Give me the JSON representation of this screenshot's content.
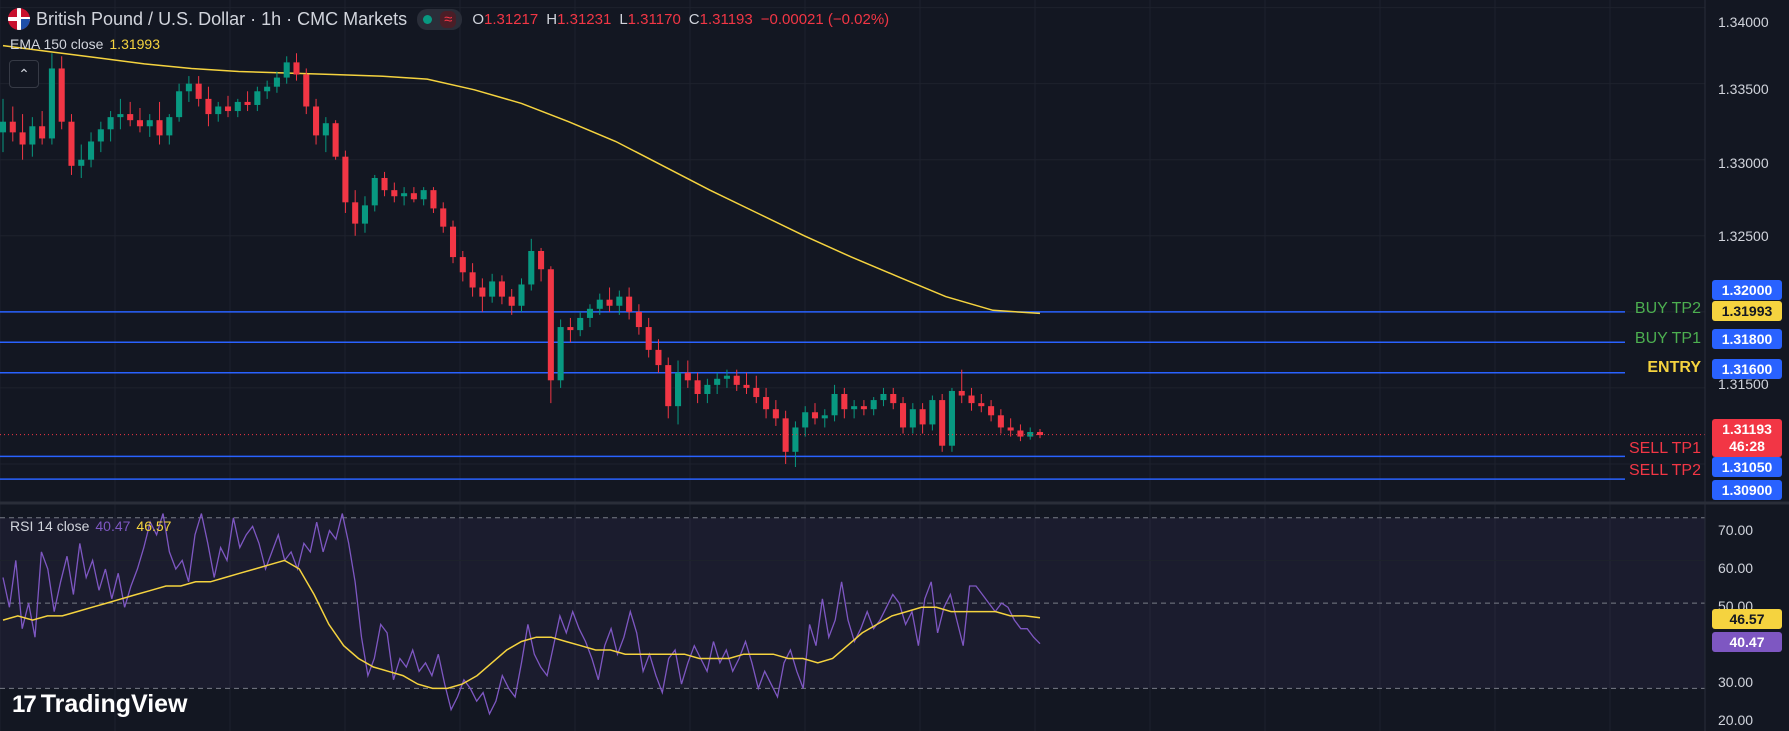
{
  "header": {
    "title": "British Pound / U.S. Dollar · 1h · CMC Markets",
    "o_label": "O",
    "o": "1.31217",
    "h_label": "H",
    "h": "1.31231",
    "l_label": "L",
    "l": "1.31170",
    "c_label": "C",
    "c": "1.31193",
    "change": "−0.00021 (−0.02%)"
  },
  "ema_legend": {
    "label": "EMA 150 close",
    "value": "1.31993"
  },
  "rsi_legend": {
    "label": "RSI 14 close",
    "rsi": "40.47",
    "ma": "46.57"
  },
  "price_axis": [
    "1.34000",
    "1.33500",
    "1.33000",
    "1.32500",
    "1.31500"
  ],
  "rsi_axis": [
    "70.00",
    "60.00",
    "50.00",
    "30.00",
    "20.00"
  ],
  "levels": [
    {
      "name": "BUY TP2",
      "price": "1.32000",
      "color": "#2962ff",
      "label_color": "#4caf50"
    },
    {
      "name": "BUY TP1",
      "price": "1.31800",
      "color": "#2962ff",
      "label_color": "#4caf50"
    },
    {
      "name": "ENTRY",
      "price": "1.31600",
      "color": "#2962ff",
      "label_color": "#f5d33f"
    },
    {
      "name": "SELL TP1",
      "price": "1.31050",
      "color": "#2962ff",
      "label_color": "#f23645"
    },
    {
      "name": "SELL TP2",
      "price": "1.30900",
      "color": "#2962ff",
      "label_color": "#f23645"
    }
  ],
  "price_tags": {
    "ema": "1.31993",
    "last": "1.31193",
    "countdown": "46:28",
    "rsi_ma": "46.57",
    "rsi": "40.47"
  },
  "logo": {
    "text": "TradingView"
  },
  "colors": {
    "up": "#089981",
    "down": "#f23645",
    "ema": "#f5d33f",
    "rsi": "#7e57c2",
    "rsi_ma": "#f5d33f",
    "level": "#2962ff",
    "bg": "#131722"
  },
  "chart_data": {
    "type": "candlestick",
    "symbol": "GBPUSD",
    "timeframe": "1h",
    "ylim": [
      1.3075,
      1.3405
    ],
    "ohlc": [
      [
        1.3318,
        1.334,
        1.3305,
        1.3325
      ],
      [
        1.3325,
        1.3335,
        1.3312,
        1.3318
      ],
      [
        1.3318,
        1.333,
        1.33,
        1.331
      ],
      [
        1.331,
        1.3328,
        1.3302,
        1.3322
      ],
      [
        1.3322,
        1.3332,
        1.331,
        1.3314
      ],
      [
        1.3314,
        1.337,
        1.331,
        1.336
      ],
      [
        1.336,
        1.3368,
        1.332,
        1.3325
      ],
      [
        1.3325,
        1.333,
        1.329,
        1.3296
      ],
      [
        1.3296,
        1.331,
        1.3288,
        1.33
      ],
      [
        1.33,
        1.3318,
        1.3295,
        1.3312
      ],
      [
        1.3312,
        1.3325,
        1.3305,
        1.332
      ],
      [
        1.332,
        1.3332,
        1.3312,
        1.3328
      ],
      [
        1.3328,
        1.334,
        1.332,
        1.333
      ],
      [
        1.333,
        1.3338,
        1.3322,
        1.3326
      ],
      [
        1.3326,
        1.3334,
        1.3318,
        1.3322
      ],
      [
        1.3322,
        1.333,
        1.3315,
        1.3326
      ],
      [
        1.3326,
        1.3338,
        1.331,
        1.3316
      ],
      [
        1.3316,
        1.333,
        1.331,
        1.3328
      ],
      [
        1.3328,
        1.335,
        1.3325,
        1.3345
      ],
      [
        1.3345,
        1.3355,
        1.3338,
        1.335
      ],
      [
        1.335,
        1.3355,
        1.3335,
        1.334
      ],
      [
        1.334,
        1.3348,
        1.3322,
        1.333
      ],
      [
        1.333,
        1.3338,
        1.3325,
        1.3335
      ],
      [
        1.3335,
        1.3342,
        1.3328,
        1.3332
      ],
      [
        1.3332,
        1.334,
        1.3328,
        1.3338
      ],
      [
        1.3338,
        1.3345,
        1.3332,
        1.3336
      ],
      [
        1.3336,
        1.3348,
        1.3332,
        1.3345
      ],
      [
        1.3345,
        1.3352,
        1.334,
        1.3348
      ],
      [
        1.3348,
        1.3358,
        1.3344,
        1.3354
      ],
      [
        1.3354,
        1.3368,
        1.335,
        1.3364
      ],
      [
        1.3364,
        1.337,
        1.3352,
        1.3356
      ],
      [
        1.3356,
        1.336,
        1.333,
        1.3335
      ],
      [
        1.3335,
        1.334,
        1.331,
        1.3316
      ],
      [
        1.3316,
        1.3328,
        1.3305,
        1.3324
      ],
      [
        1.3324,
        1.3326,
        1.33,
        1.3302
      ],
      [
        1.3302,
        1.3306,
        1.3265,
        1.3272
      ],
      [
        1.3272,
        1.328,
        1.325,
        1.3258
      ],
      [
        1.3258,
        1.3276,
        1.3252,
        1.327
      ],
      [
        1.327,
        1.329,
        1.3266,
        1.3288
      ],
      [
        1.3288,
        1.3292,
        1.3276,
        1.328
      ],
      [
        1.328,
        1.3285,
        1.3272,
        1.3276
      ],
      [
        1.3276,
        1.3282,
        1.327,
        1.3278
      ],
      [
        1.3278,
        1.3282,
        1.3272,
        1.3274
      ],
      [
        1.3274,
        1.3282,
        1.327,
        1.328
      ],
      [
        1.328,
        1.3282,
        1.3265,
        1.3268
      ],
      [
        1.3268,
        1.3272,
        1.3252,
        1.3256
      ],
      [
        1.3256,
        1.326,
        1.3232,
        1.3236
      ],
      [
        1.3236,
        1.324,
        1.322,
        1.3226
      ],
      [
        1.3226,
        1.3232,
        1.321,
        1.3216
      ],
      [
        1.3216,
        1.3222,
        1.32,
        1.321
      ],
      [
        1.321,
        1.3225,
        1.3206,
        1.322
      ],
      [
        1.322,
        1.3224,
        1.3205,
        1.321
      ],
      [
        1.321,
        1.3215,
        1.3198,
        1.3204
      ],
      [
        1.3204,
        1.3222,
        1.32,
        1.3218
      ],
      [
        1.3218,
        1.3248,
        1.3214,
        1.324
      ],
      [
        1.324,
        1.3242,
        1.322,
        1.3228
      ],
      [
        1.3228,
        1.323,
        1.314,
        1.3155
      ],
      [
        1.3155,
        1.3195,
        1.315,
        1.319
      ],
      [
        1.319,
        1.3196,
        1.318,
        1.3188
      ],
      [
        1.3188,
        1.32,
        1.3184,
        1.3196
      ],
      [
        1.3196,
        1.3205,
        1.319,
        1.3202
      ],
      [
        1.3202,
        1.3212,
        1.3198,
        1.3208
      ],
      [
        1.3208,
        1.3216,
        1.32,
        1.3204
      ],
      [
        1.3204,
        1.3214,
        1.3198,
        1.321
      ],
      [
        1.321,
        1.3216,
        1.3195,
        1.32
      ],
      [
        1.32,
        1.3205,
        1.3185,
        1.319
      ],
      [
        1.319,
        1.3196,
        1.317,
        1.3175
      ],
      [
        1.3175,
        1.3182,
        1.316,
        1.3165
      ],
      [
        1.3165,
        1.317,
        1.313,
        1.3138
      ],
      [
        1.3138,
        1.3168,
        1.3126,
        1.316
      ],
      [
        1.316,
        1.3168,
        1.315,
        1.3155
      ],
      [
        1.3155,
        1.316,
        1.314,
        1.3146
      ],
      [
        1.3146,
        1.3156,
        1.314,
        1.3152
      ],
      [
        1.3152,
        1.316,
        1.3146,
        1.3156
      ],
      [
        1.3156,
        1.3162,
        1.315,
        1.3158
      ],
      [
        1.3158,
        1.3162,
        1.3148,
        1.3152
      ],
      [
        1.3152,
        1.316,
        1.3146,
        1.315
      ],
      [
        1.315,
        1.3158,
        1.314,
        1.3144
      ],
      [
        1.3144,
        1.315,
        1.313,
        1.3136
      ],
      [
        1.3136,
        1.3142,
        1.3125,
        1.313
      ],
      [
        1.313,
        1.3135,
        1.31,
        1.3108
      ],
      [
        1.3108,
        1.3128,
        1.3098,
        1.3124
      ],
      [
        1.3124,
        1.3138,
        1.3118,
        1.3134
      ],
      [
        1.3134,
        1.314,
        1.3126,
        1.313
      ],
      [
        1.313,
        1.3136,
        1.3124,
        1.3132
      ],
      [
        1.3132,
        1.3152,
        1.3128,
        1.3146
      ],
      [
        1.3146,
        1.315,
        1.313,
        1.3136
      ],
      [
        1.3136,
        1.3142,
        1.313,
        1.3138
      ],
      [
        1.3138,
        1.3142,
        1.3132,
        1.3136
      ],
      [
        1.3136,
        1.3144,
        1.3132,
        1.3142
      ],
      [
        1.3142,
        1.315,
        1.3138,
        1.3146
      ],
      [
        1.3146,
        1.315,
        1.3136,
        1.314
      ],
      [
        1.314,
        1.3144,
        1.312,
        1.3124
      ],
      [
        1.3124,
        1.314,
        1.312,
        1.3136
      ],
      [
        1.3136,
        1.314,
        1.312,
        1.3126
      ],
      [
        1.3126,
        1.3145,
        1.3122,
        1.3142
      ],
      [
        1.3142,
        1.3146,
        1.3108,
        1.3112
      ],
      [
        1.3112,
        1.315,
        1.3108,
        1.3148
      ],
      [
        1.3148,
        1.3162,
        1.314,
        1.3145
      ],
      [
        1.3145,
        1.315,
        1.3135,
        1.314
      ],
      [
        1.314,
        1.3146,
        1.3134,
        1.3138
      ],
      [
        1.3138,
        1.3142,
        1.3128,
        1.3132
      ],
      [
        1.3132,
        1.3136,
        1.312,
        1.3124
      ],
      [
        1.3124,
        1.313,
        1.3118,
        1.3122
      ],
      [
        1.3122,
        1.3126,
        1.3115,
        1.3118
      ],
      [
        1.3118,
        1.3124,
        1.3116,
        1.3121
      ],
      [
        1.3121,
        1.3123,
        1.3117,
        1.3119
      ]
    ],
    "ema": [
      1.3375,
      1.3371,
      1.3367,
      1.3363,
      1.336,
      1.3358,
      1.3357,
      1.3356,
      1.3355,
      1.3353,
      1.3346,
      1.3337,
      1.3325,
      1.3312,
      1.3296,
      1.328,
      1.3265,
      1.325,
      1.3236,
      1.3223,
      1.321,
      1.3201,
      1.3199
    ],
    "rsi": [
      56,
      49,
      60,
      44,
      50,
      42,
      62,
      58,
      48,
      55,
      61,
      52,
      64,
      56,
      60,
      53,
      58,
      51,
      57,
      49,
      54,
      58,
      63,
      69,
      66,
      71,
      62,
      58,
      60,
      55,
      66,
      71,
      64,
      56,
      63,
      60,
      70,
      63,
      66,
      68,
      64,
      58,
      62,
      66,
      60,
      62,
      58,
      64,
      62,
      69,
      62,
      67,
      65,
      71,
      64,
      55,
      42,
      33,
      37,
      45,
      43,
      32,
      37,
      35,
      39,
      34,
      36,
      33,
      38,
      31,
      25,
      28,
      32,
      30,
      27,
      29,
      24,
      27,
      33,
      30,
      28,
      36,
      45,
      38,
      35,
      33,
      40,
      47,
      43,
      48,
      44,
      41,
      37,
      32,
      40,
      44,
      38,
      42,
      48,
      43,
      34,
      38,
      33,
      29,
      37,
      39,
      31,
      36,
      40,
      37,
      34,
      41,
      36,
      39,
      34,
      37,
      41,
      36,
      30,
      34,
      31,
      28,
      36,
      39,
      34,
      30,
      45,
      40,
      51,
      42,
      46,
      55,
      46,
      41,
      44,
      48,
      44,
      46,
      49,
      52,
      50,
      45,
      48,
      40,
      51,
      55,
      43,
      49,
      52,
      46,
      40,
      54,
      54,
      52,
      50,
      48,
      50,
      49,
      46,
      44,
      44,
      42,
      40.47
    ],
    "rsi_ma": [
      46,
      47,
      46,
      47,
      47,
      48,
      49,
      50,
      51,
      52,
      53,
      54,
      54,
      55,
      55,
      56,
      57,
      58,
      59,
      60,
      58,
      52,
      45,
      40,
      37,
      35,
      34,
      33,
      31,
      30,
      30,
      31,
      33,
      36,
      39,
      41,
      42,
      42,
      41,
      40,
      39,
      39,
      38,
      38,
      38,
      38,
      38,
      37,
      37,
      37,
      38,
      38,
      38,
      37,
      37,
      36,
      37,
      40,
      43,
      45,
      47,
      48,
      49,
      49,
      48,
      48,
      48,
      48,
      47,
      47,
      46.57
    ],
    "rsi_ylim": [
      20,
      73
    ]
  }
}
